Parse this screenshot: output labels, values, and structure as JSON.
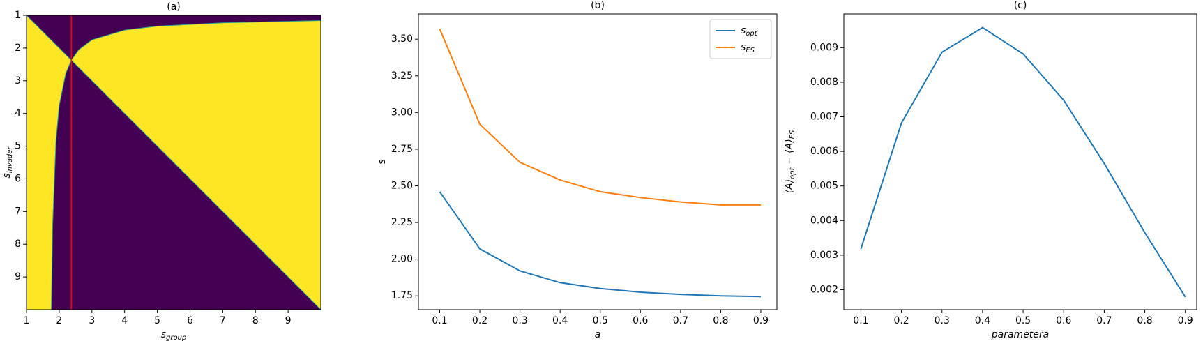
{
  "chart_data": [
    {
      "type": "heatmap",
      "title": "(a)",
      "x_label": "s_group",
      "y_label": "s_invader",
      "xlim": [
        1,
        10
      ],
      "ylim": [
        10,
        1
      ],
      "xticks": [
        1,
        2,
        3,
        4,
        5,
        6,
        7,
        8,
        9
      ],
      "yticks": [
        1,
        2,
        3,
        4,
        5,
        6,
        7,
        8,
        9
      ],
      "colors": [
        "#fde725",
        "#440154"
      ],
      "vline": 2.37,
      "vline_color": "#ff0000",
      "boundary_curve": {
        "x": [
          1.76,
          1.8,
          1.9,
          2.0,
          2.2,
          2.37,
          2.6,
          3,
          4,
          5,
          7,
          10
        ],
        "y": [
          10,
          7.38,
          4.85,
          3.76,
          2.78,
          2.37,
          2.05,
          1.75,
          1.45,
          1.33,
          1.23,
          1.16
        ]
      }
    },
    {
      "type": "line",
      "title": "(b)",
      "x_label": "a",
      "y_label": "s",
      "x": [
        0.1,
        0.2,
        0.3,
        0.4,
        0.5,
        0.6,
        0.7,
        0.8,
        0.9
      ],
      "xlim": [
        0.047,
        0.94
      ],
      "ylim": [
        1.656,
        3.672
      ],
      "xticks": [
        0.1,
        0.2,
        0.3,
        0.4,
        0.5,
        0.6,
        0.7,
        0.8,
        0.9
      ],
      "yticks": [
        1.75,
        {
          "value": 2.0,
          "label": "2.00"
        },
        2.25,
        {
          "value": 2.5,
          "label": "2.50"
        },
        2.75,
        {
          "value": 3.0,
          "label": "3.00"
        },
        3.25,
        {
          "value": 3.5,
          "label": "3.50"
        }
      ],
      "legend": "upper right",
      "series": [
        {
          "name": "s_opt",
          "color": "#1f77b4",
          "values": [
            2.46,
            2.07,
            1.92,
            1.84,
            1.8,
            1.775,
            1.76,
            1.75,
            1.745
          ]
        },
        {
          "name": "s_ES",
          "color": "#ff7f0e",
          "values": [
            3.57,
            2.92,
            2.66,
            2.54,
            2.46,
            2.42,
            2.39,
            2.37,
            2.37
          ]
        }
      ]
    },
    {
      "type": "line",
      "title": "(c)",
      "x_label": "parametera",
      "y_label": "⟨A⟩_opt − ⟨A⟩_ES",
      "x": [
        0.1,
        0.2,
        0.3,
        0.4,
        0.5,
        0.6,
        0.7,
        0.8,
        0.9
      ],
      "xlim": [
        0.058,
        0.928
      ],
      "ylim": [
        0.001424,
        0.009975
      ],
      "xticks": [
        0.1,
        0.2,
        0.3,
        0.4,
        0.5,
        0.6,
        0.7,
        0.8,
        0.9
      ],
      "yticks": [
        0.002,
        0.003,
        0.004,
        0.005,
        0.006,
        0.007,
        0.008,
        0.009
      ],
      "series": [
        {
          "color": "#1f77b4",
          "values": [
            0.00318,
            0.00682,
            0.00887,
            0.00958,
            0.00882,
            0.00748,
            0.00565,
            0.00365,
            0.00179
          ]
        }
      ]
    }
  ]
}
